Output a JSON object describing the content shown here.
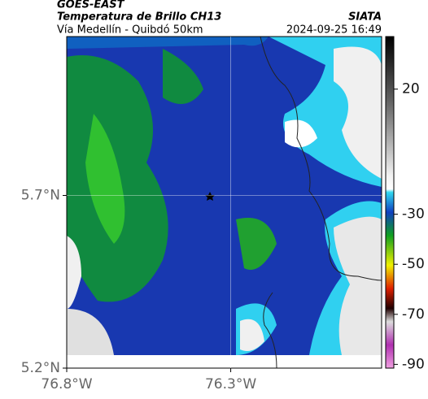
{
  "header": {
    "title": "GOES-EAST",
    "subtitle": "Temperatura de Brillo CH13",
    "route": "Vía Medellín - Quibdó 50km",
    "source": "SIATA",
    "datetime": "2024-09-25 16:49"
  },
  "map": {
    "xlim": [
      -76.8,
      -75.84
    ],
    "ylim": [
      5.2,
      6.16
    ],
    "xticks": [
      {
        "value": -76.8,
        "label": "76.8°W"
      },
      {
        "value": -76.3,
        "label": "76.3°W"
      }
    ],
    "yticks": [
      {
        "value": 5.7,
        "label": "5.7°N"
      },
      {
        "value": 5.2,
        "label": "5.2°N"
      }
    ]
  },
  "colorbar": {
    "lim": [
      41,
      -91.5
    ],
    "ticks": [
      20,
      -30,
      -50,
      -70,
      -90
    ]
  }
}
